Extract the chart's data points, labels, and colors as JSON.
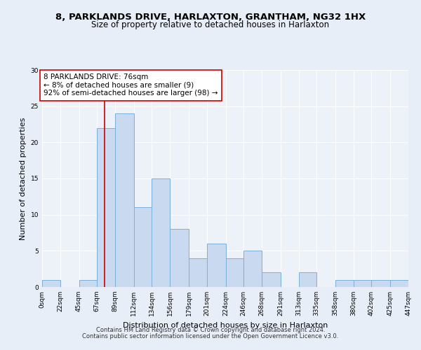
{
  "title1": "8, PARKLANDS DRIVE, HARLAXTON, GRANTHAM, NG32 1HX",
  "title2": "Size of property relative to detached houses in Harlaxton",
  "xlabel": "Distribution of detached houses by size in Harlaxton",
  "ylabel": "Number of detached properties",
  "bin_edges": [
    0,
    22,
    45,
    67,
    89,
    112,
    134,
    156,
    179,
    201,
    224,
    246,
    268,
    291,
    313,
    335,
    358,
    380,
    402,
    425,
    447
  ],
  "bin_counts": [
    1,
    0,
    1,
    22,
    24,
    11,
    15,
    8,
    4,
    6,
    4,
    5,
    2,
    0,
    2,
    0,
    1,
    1,
    1,
    1
  ],
  "bar_color": "#c9d9f0",
  "bar_edge_color": "#7ab0d8",
  "vline_color": "#cc0000",
  "vline_x": 76,
  "annotation_line1": "8 PARKLANDS DRIVE: 76sqm",
  "annotation_line2": "← 8% of detached houses are smaller (9)",
  "annotation_line3": "92% of semi-detached houses are larger (98) →",
  "annotation_box_color": "#ffffff",
  "annotation_box_edge": "#cc0000",
  "ylim": [
    0,
    30
  ],
  "yticks": [
    0,
    5,
    10,
    15,
    20,
    25,
    30
  ],
  "tick_labels": [
    "0sqm",
    "22sqm",
    "45sqm",
    "67sqm",
    "89sqm",
    "112sqm",
    "134sqm",
    "156sqm",
    "179sqm",
    "201sqm",
    "224sqm",
    "246sqm",
    "268sqm",
    "291sqm",
    "313sqm",
    "335sqm",
    "358sqm",
    "380sqm",
    "402sqm",
    "425sqm",
    "447sqm"
  ],
  "footer1": "Contains HM Land Registry data © Crown copyright and database right 2024.",
  "footer2": "Contains public sector information licensed under the Open Government Licence v3.0.",
  "bg_color": "#e8eef8",
  "plot_bg_color": "#edf1f8",
  "grid_color": "#ffffff",
  "title1_fontsize": 9.5,
  "title2_fontsize": 8.5,
  "axis_label_fontsize": 8,
  "tick_fontsize": 6.5,
  "annotation_fontsize": 7.5,
  "footer_fontsize": 6
}
